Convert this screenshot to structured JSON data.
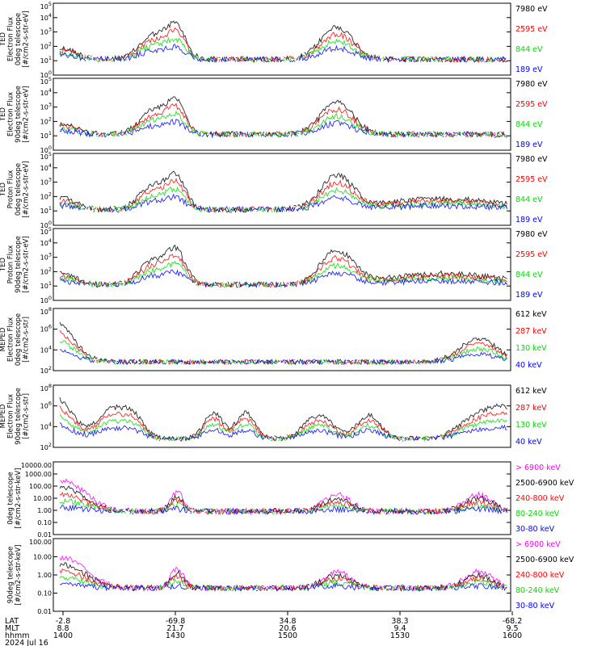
{
  "colors": {
    "black": "#000000",
    "red": "#ff0000",
    "green": "#00dd00",
    "blue": "#0000ff",
    "magenta": "#ff00ff"
  },
  "chart_data": [
    {
      "type": "line",
      "panel": 1,
      "ylabel": [
        "TED",
        "Electron Flux",
        "0deg telescope",
        "[#/cm2-s-str-eV]"
      ],
      "yscale": "log",
      "ylim": [
        1,
        100000
      ],
      "ytick_labels": [
        "10^0",
        "10^1",
        "10^2",
        "10^3",
        "10^4",
        "10^5"
      ],
      "legend": [
        {
          "label": "7980 eV",
          "color": "black"
        },
        {
          "label": "2595 eV",
          "color": "red"
        },
        {
          "label": "844 eV",
          "color": "green"
        },
        {
          "label": "189 eV",
          "color": "blue"
        }
      ]
    },
    {
      "type": "line",
      "panel": 2,
      "ylabel": [
        "TED",
        "Electron Flux",
        "90deg telescope",
        "[#/cm2-s-str-eV]"
      ],
      "yscale": "log",
      "ylim": [
        1,
        100000
      ],
      "ytick_labels": [
        "10^0",
        "10^1",
        "10^2",
        "10^3",
        "10^4",
        "10^5"
      ],
      "legend": [
        {
          "label": "7980 eV",
          "color": "black"
        },
        {
          "label": "2595 eV",
          "color": "red"
        },
        {
          "label": "844 eV",
          "color": "green"
        },
        {
          "label": "189 eV",
          "color": "blue"
        }
      ]
    },
    {
      "type": "line",
      "panel": 3,
      "ylabel": [
        "TED",
        "Proton Flux",
        "0deg telescope",
        "[#/cm2-s-str-eV]"
      ],
      "yscale": "log",
      "ylim": [
        1,
        100000
      ],
      "ytick_labels": [
        "10^0",
        "10^1",
        "10^2",
        "10^3",
        "10^4",
        "10^5"
      ],
      "legend": [
        {
          "label": "7980 eV",
          "color": "black"
        },
        {
          "label": "2595 eV",
          "color": "red"
        },
        {
          "label": "844 eV",
          "color": "green"
        },
        {
          "label": "189 eV",
          "color": "blue"
        }
      ]
    },
    {
      "type": "line",
      "panel": 4,
      "ylabel": [
        "TED",
        "Proton Flux",
        "90deg telescope",
        "[#/cm2-s-str-eV]"
      ],
      "yscale": "log",
      "ylim": [
        1,
        100000
      ],
      "ytick_labels": [
        "10^0",
        "10^1",
        "10^2",
        "10^3",
        "10^4",
        "10^5"
      ],
      "legend": [
        {
          "label": "7980 eV",
          "color": "black"
        },
        {
          "label": "2595 eV",
          "color": "red"
        },
        {
          "label": "844 eV",
          "color": "green"
        },
        {
          "label": "189 eV",
          "color": "blue"
        }
      ]
    },
    {
      "type": "line",
      "panel": 5,
      "ylabel": [
        "MEPED",
        "Electron Flux",
        "0deg telescope",
        "[#/cm2-s-str]"
      ],
      "yscale": "log",
      "ylim": [
        10,
        100000000
      ],
      "ytick_labels": [
        "10^2",
        "10^4",
        "10^6",
        "10^8"
      ],
      "legend": [
        {
          "label": "612 keV",
          "color": "black"
        },
        {
          "label": "287 keV",
          "color": "red"
        },
        {
          "label": "130 keV",
          "color": "green"
        },
        {
          "label": "40 keV",
          "color": "blue"
        }
      ]
    },
    {
      "type": "line",
      "panel": 6,
      "ylabel": [
        "MEPED",
        "Electron Flux",
        "90deg telescope",
        "[#/cm2-s-str]"
      ],
      "yscale": "log",
      "ylim": [
        10,
        100000000
      ],
      "ytick_labels": [
        "10^2",
        "10^4",
        "10^6",
        "10^8"
      ],
      "legend": [
        {
          "label": "612 keV",
          "color": "black"
        },
        {
          "label": "287 keV",
          "color": "red"
        },
        {
          "label": "130 keV",
          "color": "green"
        },
        {
          "label": "40 keV",
          "color": "blue"
        }
      ]
    },
    {
      "type": "line",
      "panel": 7,
      "ylabel": [
        "0deg telescope",
        "[#/cm2-s-str-keV]"
      ],
      "yscale": "log",
      "ylim": [
        0.01,
        10000
      ],
      "ytick_labels": [
        "10000.00",
        "1000.00",
        "100.00",
        "10.00",
        "1.00",
        "0.10",
        "0.01"
      ],
      "legend": [
        {
          "label": "> 6900 keV",
          "color": "magenta"
        },
        {
          "label": "2500-6900 keV",
          "color": "black"
        },
        {
          "label": "240-800 keV",
          "color": "red"
        },
        {
          "label": "80-240 keV",
          "color": "green"
        },
        {
          "label": "30-80 keV",
          "color": "blue"
        }
      ]
    },
    {
      "type": "line",
      "panel": 8,
      "ylabel": [
        "90deg telescope",
        "[#/cm2-s-str-keV]"
      ],
      "yscale": "log",
      "ylim": [
        0.01,
        1000
      ],
      "ytick_labels": [
        "100.00",
        "10.00",
        "1.00",
        "0.10",
        "0.01"
      ],
      "legend": [
        {
          "label": "> 6900 keV",
          "color": "magenta"
        },
        {
          "label": "2500-6900 keV",
          "color": "black"
        },
        {
          "label": "240-800 keV",
          "color": "red"
        },
        {
          "label": "80-240 keV",
          "color": "green"
        },
        {
          "label": "30-80 keV",
          "color": "blue"
        }
      ]
    }
  ],
  "xaxis": {
    "rows": [
      {
        "label": "LAT",
        "values": [
          "-2.8",
          "-69.8",
          "34.8",
          "38.3",
          "-68.2"
        ]
      },
      {
        "label": "MLT",
        "values": [
          "8.8",
          "21.7",
          "20.6",
          "9.4",
          "9.5"
        ]
      },
      {
        "label": "hhmm",
        "values": [
          "1400",
          "1430",
          "1500",
          "1530",
          "1600"
        ]
      }
    ],
    "date": "2024 Jul 16"
  }
}
